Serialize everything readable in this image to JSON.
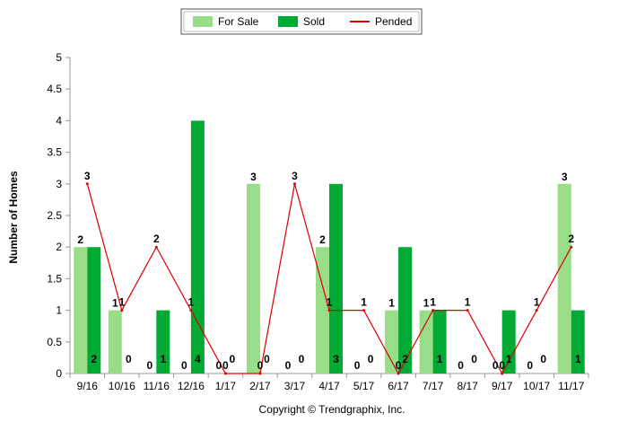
{
  "chart_data": {
    "type": "bar",
    "categories": [
      "9/16",
      "10/16",
      "11/16",
      "12/16",
      "1/17",
      "2/17",
      "3/17",
      "4/17",
      "5/17",
      "6/17",
      "7/17",
      "8/17",
      "9/17",
      "10/17",
      "11/17"
    ],
    "series": [
      {
        "name": "For Sale",
        "kind": "bar",
        "color": "#99dd88",
        "values": [
          2,
          1,
          0,
          0,
          0,
          3,
          0,
          2,
          0,
          1,
          1,
          0,
          0,
          0,
          3
        ]
      },
      {
        "name": "Sold",
        "kind": "bar",
        "color": "#00aa33",
        "values": [
          2,
          0,
          1,
          4,
          0,
          0,
          0,
          3,
          0,
          2,
          1,
          0,
          1,
          0,
          1
        ]
      },
      {
        "name": "Pended",
        "kind": "line",
        "color": "#dd0000",
        "values": [
          3,
          1,
          2,
          1,
          0,
          0,
          3,
          1,
          1,
          0,
          1,
          1,
          0,
          1,
          2
        ]
      }
    ],
    "ylabel": "Number of Homes",
    "ylim": [
      0,
      5
    ],
    "yticks": [
      "0",
      "0.5",
      "1",
      "1.5",
      "2",
      "2.5",
      "3",
      "3.5",
      "4",
      "4.5",
      "5"
    ],
    "grid": false,
    "legend": "top-center",
    "copyright": "Copyright © Trendgraphix, Inc."
  }
}
